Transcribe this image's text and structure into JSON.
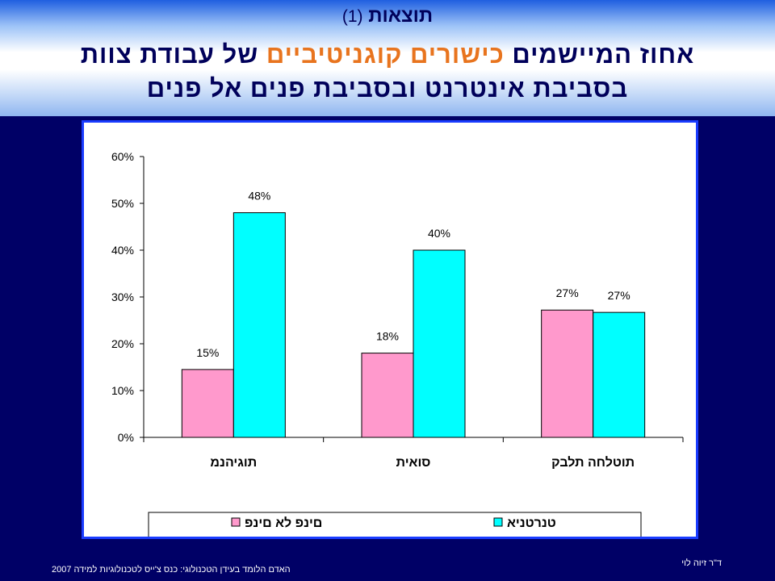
{
  "title": {
    "line1_text": "תוצאות",
    "line1_number": "(1)",
    "line2_part1": "אחוז המיישמים",
    "line2_accent": "כישורים קוגניטיביים",
    "line2_part2": "של עבודת צוות",
    "line3": "בסביבת אינטרנט ובסביבת פנים אל פנים"
  },
  "colors": {
    "background": "#000066",
    "title_text": "#00005a",
    "accent_text": "#e8741e",
    "series_pink": "#ff99cc",
    "series_cyan": "#00ffff",
    "chart_border": "#1a3cff"
  },
  "chart_data": {
    "type": "bar",
    "categories": [
      "תוגיהנמ",
      "סואית",
      "תוטלחה תלבק"
    ],
    "series": [
      {
        "name": "םינפ לא םינפ",
        "color": "#ff99cc",
        "values": [
          14.5,
          18,
          27.2
        ],
        "labels": [
          "15%",
          "18%",
          "27%"
        ]
      },
      {
        "name": "טנרטניא",
        "color": "#00ffff",
        "values": [
          48,
          40,
          26.7
        ],
        "labels": [
          "48%",
          "40%",
          "27%"
        ]
      }
    ],
    "ylim": [
      0,
      60
    ],
    "yticks": [
      0,
      10,
      20,
      30,
      40,
      50,
      60
    ],
    "ytick_labels": [
      "0%",
      "10%",
      "20%",
      "30%",
      "40%",
      "50%",
      "60%"
    ],
    "grid": false,
    "legend_position": "bottom"
  },
  "footer": {
    "credit": "האדם הלומד בעידן הטכנולוגי: כנס צ'ייס לטכנולוגיות למידה 2007",
    "author": "ד\"ר זיוה לוי"
  }
}
